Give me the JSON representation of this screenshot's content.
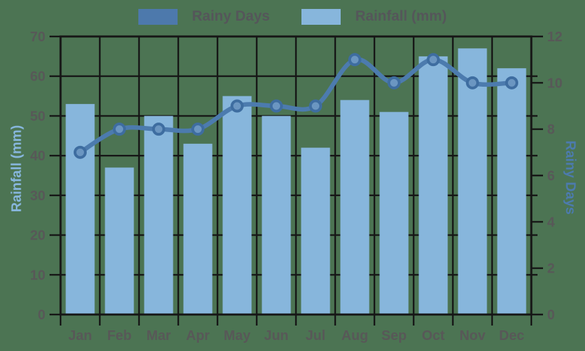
{
  "chart_data": {
    "type": "bar",
    "subtype": "bar-line-combo",
    "categories": [
      "Jan",
      "Feb",
      "Mar",
      "Apr",
      "May",
      "Jun",
      "Jul",
      "Aug",
      "Sep",
      "Oct",
      "Nov",
      "Dec"
    ],
    "series": [
      {
        "name": "Rainfall (mm)",
        "type": "bar",
        "axis": "left",
        "color": "#87b6dc",
        "values": [
          53,
          37,
          50,
          43,
          55,
          50,
          42,
          54,
          51,
          65,
          67,
          62
        ]
      },
      {
        "name": "Rainy Days",
        "type": "line",
        "axis": "right",
        "color": "#4c7bae",
        "marker_stroke": "#3e6da0",
        "marker_fill": "#6b96c1",
        "values": [
          7,
          8,
          8,
          8,
          9,
          9,
          9,
          11,
          10,
          11,
          10,
          10
        ]
      }
    ],
    "left_axis": {
      "title": "Rainfall (mm)",
      "min": 0,
      "max": 70,
      "tick_step": 10,
      "ticks": [
        0,
        10,
        20,
        30,
        40,
        50,
        60,
        70
      ]
    },
    "right_axis": {
      "title": "Rainy Days",
      "min": 0,
      "max": 12,
      "tick_step": 2,
      "ticks": [
        0,
        2,
        4,
        6,
        8,
        10,
        12
      ]
    },
    "legend": [
      {
        "label": "Rainy Days",
        "color": "#4d79ac"
      },
      {
        "label": "Rainfall (mm)",
        "color": "#87b6dc"
      }
    ],
    "legend_position": "top",
    "grid": true,
    "colors": {
      "background": "#4c7453",
      "grid": "#161616",
      "tick_label": "#585858",
      "legend_text": "#55565a"
    }
  }
}
